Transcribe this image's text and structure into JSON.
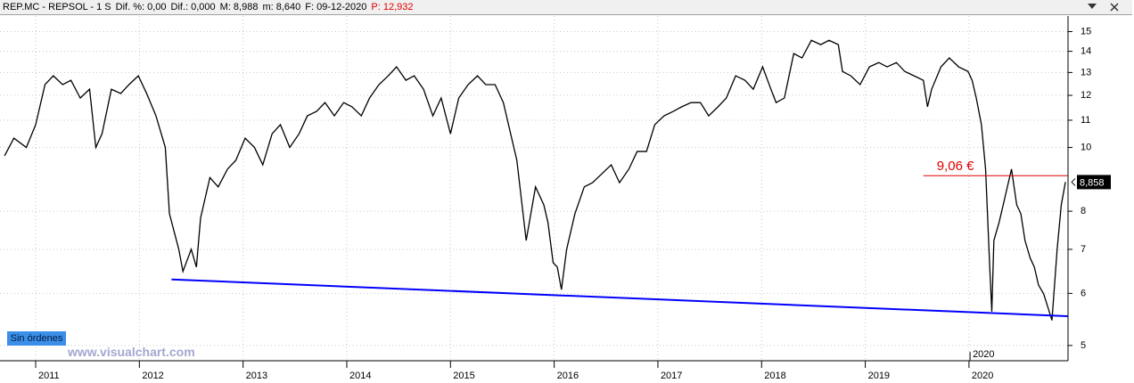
{
  "chart_data": {
    "type": "line",
    "header": [
      {
        "text": "REP.MC - REPSOL - 1 S",
        "color": "#000000"
      },
      {
        "text": "Dif. %: 0,00",
        "color": "#000000"
      },
      {
        "text": "Dif.: 0,000",
        "color": "#000000"
      },
      {
        "text": "M: 8,988",
        "color": "#000000"
      },
      {
        "text": "m: 8,640",
        "color": "#000000"
      },
      {
        "text": "F: 09-12-2020",
        "color": "#000000"
      },
      {
        "text": "P: 12,932",
        "color": "#e00000"
      }
    ],
    "button": "Sin órdenes",
    "watermark": "www.visualchart.com",
    "color": "#000000",
    "x": [
      2010.7,
      2010.79,
      2010.91,
      2011.0,
      2011.09,
      2011.17,
      2011.26,
      2011.34,
      2011.43,
      2011.52,
      2011.58,
      2011.64,
      2011.73,
      2011.82,
      2011.9,
      2011.99,
      2012.07,
      2012.16,
      2012.25,
      2012.29,
      2012.38,
      2012.42,
      2012.5,
      2012.55,
      2012.59,
      2012.68,
      2012.76,
      2012.85,
      2012.93,
      2013.02,
      2013.11,
      2013.19,
      2013.28,
      2013.36,
      2013.45,
      2013.54,
      2013.62,
      2013.71,
      2013.79,
      2013.88,
      2013.97,
      2014.05,
      2014.14,
      2014.22,
      2014.31,
      2014.4,
      2014.48,
      2014.57,
      2014.65,
      2014.74,
      2014.83,
      2014.91,
      2015.0,
      2015.08,
      2015.17,
      2015.26,
      2015.34,
      2015.43,
      2015.51,
      2015.6,
      2015.64,
      2015.69,
      2015.73,
      2015.82,
      2015.9,
      2015.94,
      2015.99,
      2016.03,
      2016.07,
      2016.12,
      2016.2,
      2016.29,
      2016.37,
      2016.46,
      2016.55,
      2016.63,
      2016.72,
      2016.8,
      2016.89,
      2016.97,
      2017.06,
      2017.15,
      2017.23,
      2017.32,
      2017.41,
      2017.49,
      2017.58,
      2017.66,
      2017.75,
      2017.84,
      2017.92,
      2018.01,
      2018.09,
      2018.14,
      2018.22,
      2018.31,
      2018.39,
      2018.48,
      2018.57,
      2018.65,
      2018.74,
      2018.78,
      2018.86,
      2018.95,
      2019.04,
      2019.13,
      2019.21,
      2019.3,
      2019.38,
      2019.47,
      2019.56,
      2019.6,
      2019.64,
      2019.73,
      2019.81,
      2019.9,
      2019.99,
      2020.03,
      2020.07,
      2020.12,
      2020.16,
      2020.2,
      2020.22,
      2020.24,
      2020.29,
      2020.33,
      2020.37,
      2020.41,
      2020.46,
      2020.5,
      2020.54,
      2020.59,
      2020.63,
      2020.67,
      2020.72,
      2020.76,
      2020.8,
      2020.85,
      2020.89,
      2020.93
    ],
    "values": [
      9.71,
      10.33,
      10.0,
      10.83,
      12.46,
      12.85,
      12.46,
      12.65,
      11.89,
      12.26,
      10.0,
      10.49,
      12.26,
      12.08,
      12.46,
      12.85,
      12.08,
      11.17,
      10.0,
      7.93,
      7.0,
      6.48,
      7.0,
      6.58,
      7.81,
      9.0,
      8.71,
      9.27,
      9.56,
      10.33,
      10.0,
      9.41,
      10.49,
      10.83,
      10.0,
      10.49,
      11.17,
      11.35,
      11.7,
      11.17,
      11.7,
      11.53,
      11.17,
      11.89,
      12.46,
      12.85,
      13.26,
      12.65,
      12.85,
      12.26,
      11.17,
      11.89,
      10.49,
      11.89,
      12.46,
      12.85,
      12.46,
      12.46,
      11.7,
      10.17,
      9.56,
      8.18,
      7.22,
      8.71,
      8.18,
      7.69,
      6.68,
      6.58,
      6.08,
      7.0,
      7.93,
      8.71,
      8.84,
      9.12,
      9.41,
      8.84,
      9.27,
      9.86,
      9.86,
      10.83,
      11.17,
      11.35,
      11.53,
      11.7,
      11.7,
      11.17,
      11.53,
      11.89,
      12.85,
      12.65,
      12.26,
      13.26,
      12.26,
      11.7,
      11.89,
      13.89,
      13.68,
      14.55,
      14.33,
      14.55,
      14.33,
      13.05,
      12.85,
      12.46,
      13.26,
      13.46,
      13.26,
      13.46,
      13.05,
      12.85,
      12.65,
      11.53,
      12.26,
      13.26,
      13.68,
      13.26,
      13.05,
      12.65,
      11.89,
      10.83,
      9.27,
      6.58,
      5.63,
      7.22,
      7.69,
      8.18,
      8.71,
      9.27,
      8.18,
      7.93,
      7.22,
      6.79,
      6.58,
      6.18,
      5.99,
      5.72,
      5.46,
      7.0,
      8.18,
      8.86
    ],
    "xlim": [
      2010.656,
      2020.955
    ],
    "xticks": [
      2011,
      2012,
      2013,
      2014,
      2015,
      2016,
      2017,
      2018,
      2019,
      2020
    ],
    "ylim": [
      4.74,
      15.84
    ],
    "yticks": [
      5,
      6,
      7,
      8,
      10,
      11,
      12,
      13,
      14,
      15
    ],
    "log_y": true,
    "grid": true,
    "trendline": {
      "x": [
        2012.31,
        2020.95
      ],
      "values": [
        6.3,
        5.54
      ],
      "color": "#0000ff"
    },
    "level": {
      "value": 9.06,
      "label": "9,06 €",
      "x": [
        2019.56,
        2020.95
      ],
      "color": "#e00000"
    },
    "last_price": {
      "value": 8.858,
      "label": "8,858"
    },
    "x_cursor": {
      "value": 2020.01,
      "label": "2020"
    }
  }
}
